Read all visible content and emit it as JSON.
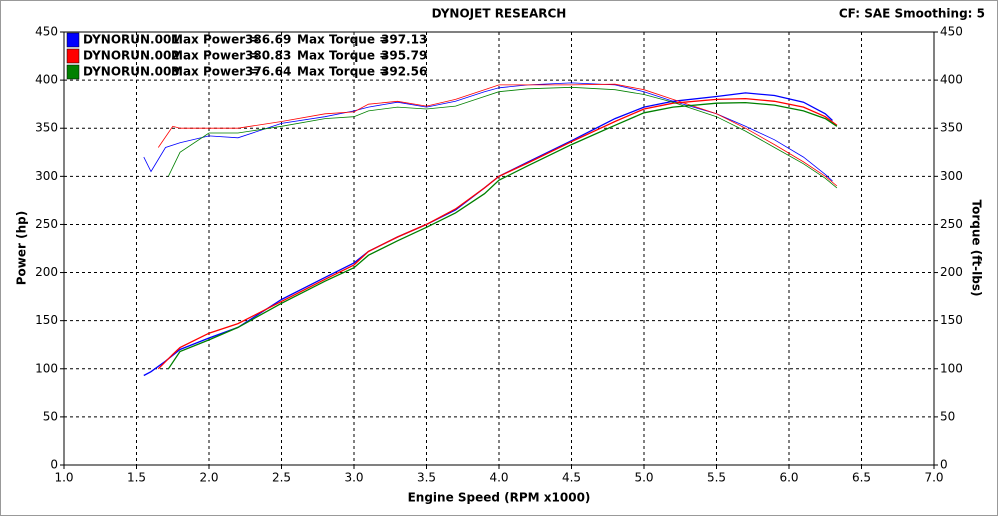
{
  "chart_data": {
    "type": "line",
    "title": "DYNOJET RESEARCH",
    "settings_label": "CF: SAE  Smoothing: 5",
    "xlabel": "Engine Speed (RPM x1000)",
    "ylabel": "Power (hp)",
    "y2label": "Torque (ft-lbs)",
    "xlim": [
      1.0,
      7.0
    ],
    "xticks": [
      {
        "value": 1,
        "label": "1.0"
      },
      1.5,
      {
        "value": 2,
        "label": "2.0"
      },
      2.5,
      {
        "value": 3,
        "label": "3.0"
      },
      3.5,
      {
        "value": 4,
        "label": "4.0"
      },
      4.5,
      {
        "value": 5,
        "label": "5.0"
      },
      5.5,
      {
        "value": 6,
        "label": "6.0"
      },
      6.5,
      {
        "value": 7,
        "label": "7.0"
      }
    ],
    "ylim": [
      0,
      450
    ],
    "yticks": [
      0,
      50,
      100,
      150,
      200,
      250,
      300,
      350,
      400,
      450
    ],
    "y2lim": [
      0,
      450
    ],
    "y2ticks": [
      0,
      50,
      100,
      150,
      200,
      250,
      300,
      350,
      400,
      450
    ],
    "grid": true,
    "max_power_label": "Max Power =",
    "max_torque_label": "Max Torque =",
    "runs": [
      {
        "name": "DYNORUN.001",
        "color": "#0000ff",
        "max_power": 386.69,
        "max_torque": 397.13,
        "x": [
          1.55,
          1.6,
          1.7,
          1.8,
          2.0,
          2.2,
          2.5,
          2.8,
          3.0,
          3.1,
          3.3,
          3.5,
          3.7,
          3.9,
          4.0,
          4.2,
          4.5,
          4.8,
          5.0,
          5.2,
          5.5,
          5.7,
          5.9,
          6.1,
          6.25,
          6.3
        ],
        "power": [
          93,
          97,
          108,
          120,
          132,
          143,
          172,
          195,
          210,
          222,
          237,
          250,
          265,
          288,
          300,
          315,
          337,
          360,
          372,
          378,
          383,
          386.69,
          384,
          377,
          365,
          358
        ],
        "torque": [
          320,
          305,
          330,
          335,
          342,
          340,
          355,
          362,
          368,
          372,
          377,
          372,
          378,
          388,
          392,
          395,
          397.13,
          395,
          388,
          378,
          365,
          352,
          338,
          320,
          302,
          295
        ]
      },
      {
        "name": "DYNORUN.002",
        "color": "#ff0000",
        "max_power": 380.83,
        "max_torque": 395.79,
        "x": [
          1.65,
          1.75,
          1.8,
          2.0,
          2.2,
          2.5,
          2.8,
          3.0,
          3.1,
          3.3,
          3.5,
          3.7,
          3.9,
          4.0,
          4.2,
          4.5,
          4.8,
          5.0,
          5.2,
          5.5,
          5.7,
          5.9,
          6.1,
          6.25,
          6.33
        ],
        "power": [
          100,
          115,
          122,
          137,
          147,
          170,
          193,
          208,
          222,
          237,
          250,
          266,
          288,
          300,
          314,
          336,
          357,
          370,
          376,
          380,
          380.83,
          378,
          372,
          362,
          353
        ],
        "torque": [
          330,
          352,
          350,
          350,
          350,
          357,
          365,
          367,
          375,
          378,
          373,
          380,
          390,
          395,
          395,
          395,
          395.79,
          390,
          380,
          365,
          350,
          333,
          315,
          300,
          290
        ]
      },
      {
        "name": "DYNORUN.003",
        "color": "#008000",
        "max_power": 376.64,
        "max_torque": 392.56,
        "x": [
          1.72,
          1.8,
          2.0,
          2.2,
          2.5,
          2.8,
          3.0,
          3.1,
          3.3,
          3.5,
          3.7,
          3.9,
          4.0,
          4.2,
          4.5,
          4.8,
          5.0,
          5.2,
          5.5,
          5.7,
          5.9,
          6.1,
          6.25,
          6.33
        ],
        "power": [
          100,
          118,
          130,
          143,
          168,
          191,
          205,
          218,
          233,
          247,
          262,
          282,
          296,
          311,
          333,
          353,
          366,
          372,
          376,
          376.64,
          374,
          368,
          360,
          352
        ],
        "torque": [
          300,
          325,
          345,
          345,
          352,
          360,
          362,
          368,
          372,
          370,
          373,
          383,
          388,
          391,
          392.56,
          390,
          385,
          377,
          362,
          347,
          330,
          313,
          298,
          288
        ]
      }
    ]
  }
}
